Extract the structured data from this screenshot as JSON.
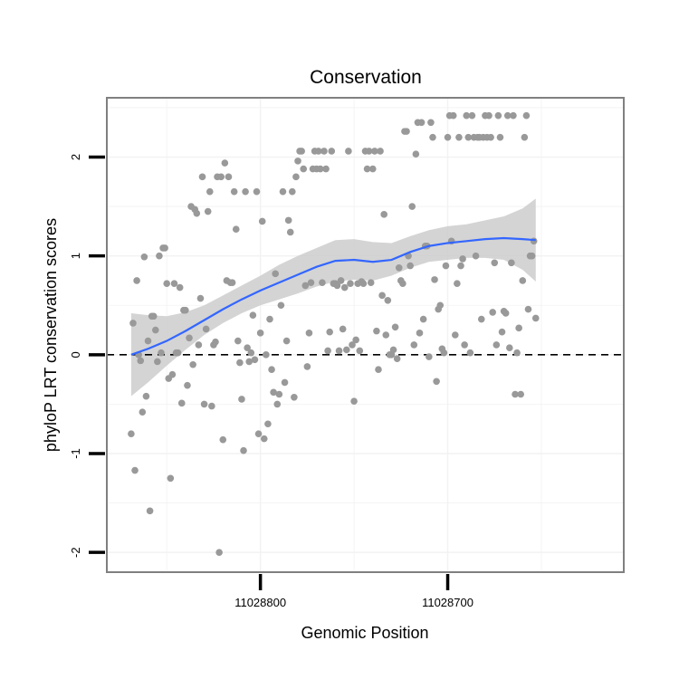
{
  "chart_data": {
    "type": "scatter",
    "title": "Conservation",
    "xlabel": "Genomic Position",
    "ylabel": "phyloP LRT conservation scores",
    "x_tick_labels": [
      "11028800",
      "11028700"
    ],
    "y_tick_labels": [
      "-2",
      "-1",
      "0",
      "1",
      "2"
    ],
    "x_axis": {
      "reversed": true,
      "ticks": [
        11028800,
        11028700
      ],
      "range": [
        11028882,
        11028606
      ]
    },
    "ylim": [
      -2.2,
      2.6
    ],
    "grid": true,
    "reference_line": {
      "y": 0,
      "style": "dashed",
      "color": "#000000"
    },
    "colors": {
      "points": "#999999",
      "smooth_line": "#3366ff",
      "confidence_band": "#cccccc",
      "panel_border": "#808080",
      "grid": "#f2f2f2"
    },
    "points": [
      [
        11028869,
        -0.8
      ],
      [
        11028868,
        0.32
      ],
      [
        11028867,
        -1.17
      ],
      [
        11028866,
        0.75
      ],
      [
        11028865,
        0
      ],
      [
        11028864,
        -0.06
      ],
      [
        11028863,
        -0.58
      ],
      [
        11028862,
        0.99
      ],
      [
        11028861,
        -0.42
      ],
      [
        11028860,
        0.14
      ],
      [
        11028859,
        -1.58
      ],
      [
        11028858,
        0.39
      ],
      [
        11028857,
        0.39
      ],
      [
        11028856,
        0.25
      ],
      [
        11028855,
        -0.07
      ],
      [
        11028854,
        1.0
      ],
      [
        11028853,
        0.02
      ],
      [
        11028852,
        1.08
      ],
      [
        11028851,
        1.08
      ],
      [
        11028850,
        0.72
      ],
      [
        11028849,
        -0.24
      ],
      [
        11028848,
        -1.25
      ],
      [
        11028847,
        -0.2
      ],
      [
        11028846,
        0.72
      ],
      [
        11028845,
        0.02
      ],
      [
        11028844,
        0.02
      ],
      [
        11028843,
        0.68
      ],
      [
        11028842,
        -0.49
      ],
      [
        11028841,
        0.45
      ],
      [
        11028840,
        0.45
      ],
      [
        11028839,
        -0.31
      ],
      [
        11028838,
        0.17
      ],
      [
        11028837,
        1.5
      ],
      [
        11028836,
        -0.1
      ],
      [
        11028835,
        1.47
      ],
      [
        11028834,
        1.43
      ],
      [
        11028833,
        0.1
      ],
      [
        11028832,
        0.57
      ],
      [
        11028831,
        1.8
      ],
      [
        11028830,
        -0.5
      ],
      [
        11028829,
        0.26
      ],
      [
        11028828,
        1.45
      ],
      [
        11028827,
        1.65
      ],
      [
        11028826,
        -0.52
      ],
      [
        11028825,
        0.1
      ],
      [
        11028824,
        0.13
      ],
      [
        11028823,
        1.8
      ],
      [
        11028822,
        -2.0
      ],
      [
        11028821,
        1.8
      ],
      [
        11028820,
        -0.86
      ],
      [
        11028819,
        1.94
      ],
      [
        11028818,
        0.75
      ],
      [
        11028817,
        1.8
      ],
      [
        11028816,
        0.73
      ],
      [
        11028815,
        0.73
      ],
      [
        11028814,
        1.65
      ],
      [
        11028813,
        1.27
      ],
      [
        11028812,
        0.14
      ],
      [
        11028811,
        -0.08
      ],
      [
        11028810,
        -0.45
      ],
      [
        11028809,
        -0.97
      ],
      [
        11028808,
        1.65
      ],
      [
        11028807,
        0.07
      ],
      [
        11028806,
        -0.07
      ],
      [
        11028805,
        0.02
      ],
      [
        11028804,
        0.4
      ],
      [
        11028803,
        -0.05
      ],
      [
        11028802,
        1.65
      ],
      [
        11028801,
        -0.8
      ],
      [
        11028800,
        0.22
      ],
      [
        11028799,
        1.35
      ],
      [
        11028798,
        -0.85
      ],
      [
        11028797,
        0.0
      ],
      [
        11028796,
        -0.7
      ],
      [
        11028795,
        0.36
      ],
      [
        11028794,
        -0.15
      ],
      [
        11028793,
        -0.38
      ],
      [
        11028792,
        0.82
      ],
      [
        11028791,
        -0.5
      ],
      [
        11028790,
        -0.4
      ],
      [
        11028789,
        0.5
      ],
      [
        11028788,
        1.65
      ],
      [
        11028787,
        -0.28
      ],
      [
        11028786,
        0.14
      ],
      [
        11028785,
        1.36
      ],
      [
        11028784,
        1.24
      ],
      [
        11028783,
        1.65
      ],
      [
        11028782,
        -0.43
      ],
      [
        11028781,
        1.8
      ],
      [
        11028780,
        1.96
      ],
      [
        11028779,
        2.06
      ],
      [
        11028778,
        2.06
      ],
      [
        11028777,
        1.88
      ],
      [
        11028776,
        0.7
      ],
      [
        11028775,
        -0.12
      ],
      [
        11028774,
        0.22
      ],
      [
        11028773,
        0.73
      ],
      [
        11028772,
        1.88
      ],
      [
        11028771,
        2.06
      ],
      [
        11028770,
        1.88
      ],
      [
        11028769,
        2.06
      ],
      [
        11028768,
        1.88
      ],
      [
        11028767,
        0.73
      ],
      [
        11028766,
        2.06
      ],
      [
        11028765,
        1.88
      ],
      [
        11028764,
        0.04
      ],
      [
        11028763,
        0.23
      ],
      [
        11028762,
        2.06
      ],
      [
        11028761,
        0.72
      ],
      [
        11028760,
        0.72
      ],
      [
        11028759,
        0.7
      ],
      [
        11028758,
        0.04
      ],
      [
        11028757,
        0.75
      ],
      [
        11028756,
        0.26
      ],
      [
        11028755,
        0.68
      ],
      [
        11028754,
        0.05
      ],
      [
        11028753,
        2.06
      ],
      [
        11028752,
        0.72
      ],
      [
        11028751,
        0.1
      ],
      [
        11028750,
        -0.47
      ],
      [
        11028749,
        0.15
      ],
      [
        11028748,
        0.72
      ],
      [
        11028747,
        0.04
      ],
      [
        11028746,
        0.74
      ],
      [
        11028745,
        0.72
      ],
      [
        11028744,
        2.06
      ],
      [
        11028743,
        1.88
      ],
      [
        11028742,
        2.06
      ],
      [
        11028741,
        0.73
      ],
      [
        11028740,
        1.88
      ],
      [
        11028739,
        2.06
      ],
      [
        11028738,
        0.24
      ],
      [
        11028737,
        -0.15
      ],
      [
        11028736,
        2.06
      ],
      [
        11028735,
        0.6
      ],
      [
        11028734,
        1.42
      ],
      [
        11028733,
        0.2
      ],
      [
        11028732,
        0.55
      ],
      [
        11028731,
        0.0
      ],
      [
        11028730,
        0.0
      ],
      [
        11028729,
        0.05
      ],
      [
        11028728,
        0.28
      ],
      [
        11028727,
        -0.04
      ],
      [
        11028726,
        0.88
      ],
      [
        11028725,
        0.75
      ],
      [
        11028724,
        0.72
      ],
      [
        11028723,
        2.26
      ],
      [
        11028722,
        2.26
      ],
      [
        11028721,
        1.0
      ],
      [
        11028720,
        0.9
      ],
      [
        11028719,
        1.5
      ],
      [
        11028718,
        0.1
      ],
      [
        11028717,
        2.03
      ],
      [
        11028716,
        2.35
      ],
      [
        11028715,
        0.22
      ],
      [
        11028714,
        2.35
      ],
      [
        11028713,
        0.36
      ],
      [
        11028712,
        1.1
      ],
      [
        11028711,
        1.1
      ],
      [
        11028710,
        -0.02
      ],
      [
        11028709,
        2.35
      ],
      [
        11028708,
        2.2
      ],
      [
        11028707,
        0.76
      ],
      [
        11028706,
        -0.27
      ],
      [
        11028705,
        0.46
      ],
      [
        11028704,
        0.5
      ],
      [
        11028703,
        0.06
      ],
      [
        11028702,
        0.02
      ],
      [
        11028701,
        0.9
      ],
      [
        11028700,
        2.2
      ],
      [
        11028699,
        2.42
      ],
      [
        11028698,
        1.15
      ],
      [
        11028697,
        2.42
      ],
      [
        11028696,
        0.2
      ],
      [
        11028695,
        0.72
      ],
      [
        11028694,
        2.2
      ],
      [
        11028693,
        0.9
      ],
      [
        11028692,
        0.97
      ],
      [
        11028691,
        0.1
      ],
      [
        11028690,
        2.42
      ],
      [
        11028689,
        2.2
      ],
      [
        11028688,
        0.02
      ],
      [
        11028687,
        2.42
      ],
      [
        11028686,
        2.2
      ],
      [
        11028685,
        1.0
      ],
      [
        11028684,
        2.2
      ],
      [
        11028683,
        2.2
      ],
      [
        11028682,
        0.36
      ],
      [
        11028681,
        2.2
      ],
      [
        11028680,
        2.42
      ],
      [
        11028679,
        2.2
      ],
      [
        11028678,
        2.42
      ],
      [
        11028677,
        2.2
      ],
      [
        11028676,
        0.43
      ],
      [
        11028675,
        0.93
      ],
      [
        11028674,
        0.1
      ],
      [
        11028673,
        2.42
      ],
      [
        11028672,
        2.2
      ],
      [
        11028671,
        0.23
      ],
      [
        11028670,
        0.44
      ],
      [
        11028669,
        0.42
      ],
      [
        11028668,
        2.42
      ],
      [
        11028667,
        0.07
      ],
      [
        11028666,
        0.93
      ],
      [
        11028665,
        2.42
      ],
      [
        11028664,
        -0.4
      ],
      [
        11028663,
        0.02
      ],
      [
        11028662,
        0.27
      ],
      [
        11028661,
        -0.4
      ],
      [
        11028660,
        0.75
      ],
      [
        11028659,
        2.2
      ],
      [
        11028658,
        2.42
      ],
      [
        11028657,
        0.46
      ],
      [
        11028656,
        1.0
      ],
      [
        11028655,
        1.0
      ],
      [
        11028654,
        1.15
      ],
      [
        11028653,
        0.37
      ]
    ],
    "smooth_curve": [
      [
        11028869,
        0.0
      ],
      [
        11028860,
        0.06
      ],
      [
        11028850,
        0.14
      ],
      [
        11028840,
        0.24
      ],
      [
        11028830,
        0.35
      ],
      [
        11028820,
        0.46
      ],
      [
        11028810,
        0.56
      ],
      [
        11028800,
        0.65
      ],
      [
        11028790,
        0.73
      ],
      [
        11028780,
        0.81
      ],
      [
        11028770,
        0.89
      ],
      [
        11028760,
        0.95
      ],
      [
        11028750,
        0.96
      ],
      [
        11028740,
        0.94
      ],
      [
        11028730,
        0.96
      ],
      [
        11028720,
        1.04
      ],
      [
        11028710,
        1.1
      ],
      [
        11028700,
        1.13
      ],
      [
        11028690,
        1.15
      ],
      [
        11028680,
        1.17
      ],
      [
        11028670,
        1.18
      ],
      [
        11028660,
        1.17
      ],
      [
        11028653,
        1.16
      ]
    ],
    "band_upper": [
      [
        11028869,
        0.42
      ],
      [
        11028860,
        0.4
      ],
      [
        11028850,
        0.39
      ],
      [
        11028840,
        0.43
      ],
      [
        11028830,
        0.5
      ],
      [
        11028820,
        0.6
      ],
      [
        11028810,
        0.7
      ],
      [
        11028800,
        0.8
      ],
      [
        11028790,
        0.91
      ],
      [
        11028780,
        1.0
      ],
      [
        11028770,
        1.08
      ],
      [
        11028760,
        1.16
      ],
      [
        11028750,
        1.17
      ],
      [
        11028740,
        1.14
      ],
      [
        11028730,
        1.13
      ],
      [
        11028720,
        1.2
      ],
      [
        11028710,
        1.26
      ],
      [
        11028700,
        1.3
      ],
      [
        11028690,
        1.32
      ],
      [
        11028680,
        1.36
      ],
      [
        11028670,
        1.4
      ],
      [
        11028660,
        1.48
      ],
      [
        11028653,
        1.58
      ]
    ],
    "band_lower": [
      [
        11028869,
        -0.42
      ],
      [
        11028860,
        -0.28
      ],
      [
        11028850,
        -0.11
      ],
      [
        11028840,
        0.05
      ],
      [
        11028830,
        0.2
      ],
      [
        11028820,
        0.32
      ],
      [
        11028810,
        0.42
      ],
      [
        11028800,
        0.5
      ],
      [
        11028790,
        0.56
      ],
      [
        11028780,
        0.62
      ],
      [
        11028770,
        0.69
      ],
      [
        11028760,
        0.74
      ],
      [
        11028750,
        0.76
      ],
      [
        11028740,
        0.75
      ],
      [
        11028730,
        0.8
      ],
      [
        11028720,
        0.88
      ],
      [
        11028710,
        0.94
      ],
      [
        11028700,
        0.96
      ],
      [
        11028690,
        0.98
      ],
      [
        11028680,
        0.98
      ],
      [
        11028670,
        0.96
      ],
      [
        11028660,
        0.86
      ],
      [
        11028653,
        0.74
      ]
    ]
  }
}
